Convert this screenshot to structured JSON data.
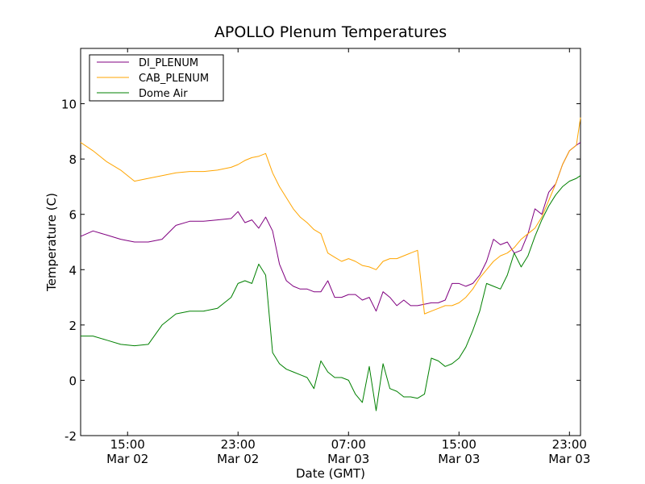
{
  "chart_data": {
    "type": "line",
    "title": "APOLLO Plenum Temperatures",
    "xlabel": "Date (GMT)",
    "ylabel": "Temperature (C)",
    "x_unit": "hours since Mar 02 00:00 GMT",
    "xlim": [
      11.6,
      47.8
    ],
    "ylim": [
      -2,
      12
    ],
    "grid": false,
    "legend_position": "top-left",
    "yticks": [
      {
        "value": -2,
        "label": "-2"
      },
      {
        "value": 0,
        "label": "0"
      },
      {
        "value": 2,
        "label": "2"
      },
      {
        "value": 4,
        "label": "4"
      },
      {
        "value": 6,
        "label": "6"
      },
      {
        "value": 8,
        "label": "8"
      },
      {
        "value": 10,
        "label": "10"
      }
    ],
    "xticks": [
      {
        "value": 15,
        "time": "15:00",
        "date": "Mar 02"
      },
      {
        "value": 23,
        "time": "23:00",
        "date": "Mar 02"
      },
      {
        "value": 31,
        "time": "07:00",
        "date": "Mar 03"
      },
      {
        "value": 39,
        "time": "15:00",
        "date": "Mar 03"
      },
      {
        "value": 47,
        "time": "23:00",
        "date": "Mar 03"
      }
    ],
    "series": [
      {
        "name": "DI_PLENUM",
        "color": "#800080",
        "x": [
          11.6,
          12.5,
          13.5,
          14.5,
          15.5,
          16.5,
          17.5,
          18.5,
          19.5,
          20.5,
          21.5,
          22.5,
          23.0,
          23.5,
          24.0,
          24.5,
          25.0,
          25.5,
          26.0,
          26.5,
          27.0,
          27.5,
          28.0,
          28.5,
          29.0,
          29.5,
          30.0,
          30.5,
          31.0,
          31.5,
          32.0,
          32.5,
          33.0,
          33.5,
          34.0,
          34.5,
          35.0,
          35.5,
          36.0,
          36.5,
          37.0,
          37.5,
          38.0,
          38.5,
          39.0,
          39.5,
          40.0,
          40.5,
          41.0,
          41.5,
          42.0,
          42.5,
          43.0,
          43.5,
          44.0,
          44.5,
          45.0,
          45.5,
          46.0,
          46.5,
          47.0,
          47.5,
          47.8
        ],
        "values": [
          5.2,
          5.4,
          5.25,
          5.1,
          5.0,
          5.0,
          5.1,
          5.6,
          5.75,
          5.75,
          5.8,
          5.85,
          6.1,
          5.7,
          5.8,
          5.5,
          5.9,
          5.4,
          4.2,
          3.6,
          3.4,
          3.3,
          3.3,
          3.2,
          3.2,
          3.6,
          3.0,
          3.0,
          3.1,
          3.1,
          2.9,
          3.0,
          2.5,
          3.2,
          3.0,
          2.7,
          2.9,
          2.7,
          2.7,
          2.75,
          2.8,
          2.8,
          2.9,
          3.5,
          3.5,
          3.4,
          3.5,
          3.8,
          4.3,
          5.1,
          4.9,
          5.0,
          4.6,
          4.7,
          5.3,
          6.2,
          6.0,
          6.8,
          7.1,
          7.8,
          8.3,
          8.5,
          8.6
        ]
      },
      {
        "name": "CAB_PLENUM",
        "color": "#ffa500",
        "x": [
          11.6,
          12.5,
          13.5,
          14.5,
          15.5,
          16.5,
          17.5,
          18.5,
          19.5,
          20.5,
          21.5,
          22.5,
          23.0,
          23.5,
          24.0,
          24.5,
          25.0,
          25.5,
          26.0,
          26.5,
          27.0,
          27.5,
          28.0,
          28.5,
          29.0,
          29.5,
          30.0,
          30.5,
          31.0,
          31.5,
          32.0,
          32.5,
          33.0,
          33.5,
          34.0,
          34.5,
          35.0,
          35.5,
          36.0,
          36.5,
          37.0,
          37.5,
          38.0,
          38.5,
          39.0,
          39.5,
          40.0,
          40.5,
          41.0,
          41.5,
          42.0,
          42.5,
          43.0,
          43.5,
          44.0,
          44.5,
          45.0,
          45.5,
          46.0,
          46.5,
          47.0,
          47.5,
          47.8
        ],
        "values": [
          8.6,
          8.3,
          7.9,
          7.6,
          7.2,
          7.3,
          7.4,
          7.5,
          7.55,
          7.55,
          7.6,
          7.7,
          7.8,
          7.95,
          8.05,
          8.1,
          8.2,
          7.5,
          7.0,
          6.6,
          6.2,
          5.9,
          5.7,
          5.45,
          5.3,
          4.6,
          4.45,
          4.3,
          4.4,
          4.3,
          4.15,
          4.1,
          4.0,
          4.3,
          4.4,
          4.4,
          4.5,
          4.6,
          4.7,
          2.4,
          2.5,
          2.6,
          2.7,
          2.7,
          2.8,
          3.0,
          3.3,
          3.7,
          4.0,
          4.3,
          4.5,
          4.6,
          4.8,
          5.1,
          5.3,
          5.5,
          5.9,
          6.5,
          7.1,
          7.8,
          8.3,
          8.5,
          9.5
        ]
      },
      {
        "name": "Dome Air",
        "color": "#008000",
        "x": [
          11.6,
          12.5,
          13.5,
          14.5,
          15.5,
          16.5,
          17.5,
          18.5,
          19.5,
          20.5,
          21.5,
          22.5,
          23.0,
          23.5,
          24.0,
          24.5,
          25.0,
          25.5,
          26.0,
          26.5,
          27.0,
          27.5,
          28.0,
          28.5,
          29.0,
          29.5,
          30.0,
          30.5,
          31.0,
          31.5,
          32.0,
          32.5,
          33.0,
          33.5,
          34.0,
          34.5,
          35.0,
          35.5,
          36.0,
          36.5,
          37.0,
          37.5,
          38.0,
          38.5,
          39.0,
          39.5,
          40.0,
          40.5,
          41.0,
          41.5,
          42.0,
          42.5,
          43.0,
          43.5,
          44.0,
          44.5,
          45.0,
          45.5,
          46.0,
          46.5,
          47.0,
          47.5,
          47.8
        ],
        "values": [
          1.6,
          1.6,
          1.45,
          1.3,
          1.25,
          1.3,
          2.0,
          2.4,
          2.5,
          2.5,
          2.6,
          3.0,
          3.5,
          3.6,
          3.5,
          4.2,
          3.8,
          1.0,
          0.6,
          0.4,
          0.3,
          0.2,
          0.1,
          -0.3,
          0.7,
          0.3,
          0.1,
          0.1,
          0.0,
          -0.5,
          -0.8,
          0.5,
          -1.1,
          0.6,
          -0.3,
          -0.4,
          -0.6,
          -0.6,
          -0.65,
          -0.5,
          0.8,
          0.7,
          0.5,
          0.6,
          0.8,
          1.2,
          1.8,
          2.5,
          3.5,
          3.4,
          3.3,
          3.8,
          4.6,
          4.1,
          4.5,
          5.2,
          5.8,
          6.3,
          6.7,
          7.0,
          7.2,
          7.3,
          7.4
        ]
      }
    ]
  }
}
